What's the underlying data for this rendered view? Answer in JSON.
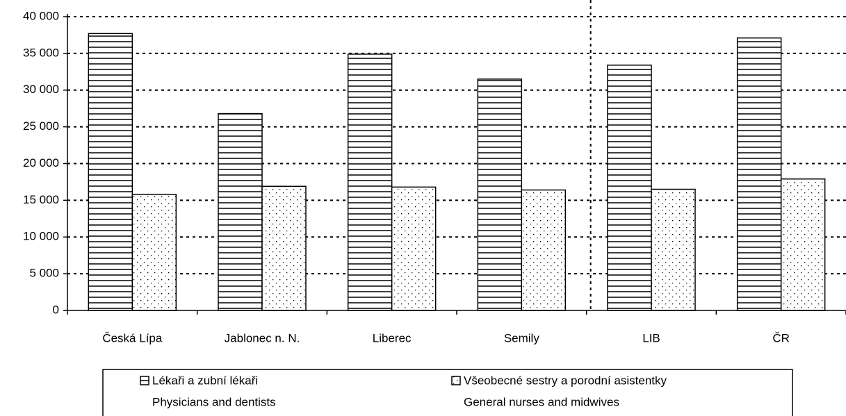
{
  "chart_data": {
    "type": "bar",
    "categories": [
      "Česká Lípa",
      "Jablonec n. N.",
      "Liberec",
      "Semily",
      "LIB",
      "ČR"
    ],
    "series": [
      {
        "name": "Lékaři a zubní lékaři",
        "name_en": "Physicians and dentists",
        "color": "#000000",
        "pattern": "horizontal-lines",
        "values": [
          37700,
          26800,
          34900,
          31500,
          33400,
          37100
        ]
      },
      {
        "name": "Všeobecné sestry a porodní asistentky",
        "name_en": "General nurses and midwives",
        "color": "#000000",
        "pattern": "dots",
        "values": [
          15800,
          16900,
          16800,
          16400,
          16500,
          17900
        ]
      }
    ],
    "ylim": [
      0,
      40000
    ],
    "yticks": [
      {
        "value": 0,
        "label": "0"
      },
      {
        "value": 5000,
        "label": "5 000"
      },
      {
        "value": 10000,
        "label": "10 000"
      },
      {
        "value": 15000,
        "label": "15 000"
      },
      {
        "value": 20000,
        "label": "20 000"
      },
      {
        "value": 25000,
        "label": "25 000"
      },
      {
        "value": 30000,
        "label": "30 000"
      },
      {
        "value": 35000,
        "label": "35 000"
      },
      {
        "value": 40000,
        "label": "40 000"
      }
    ],
    "grid": true,
    "legend": "bottom"
  }
}
